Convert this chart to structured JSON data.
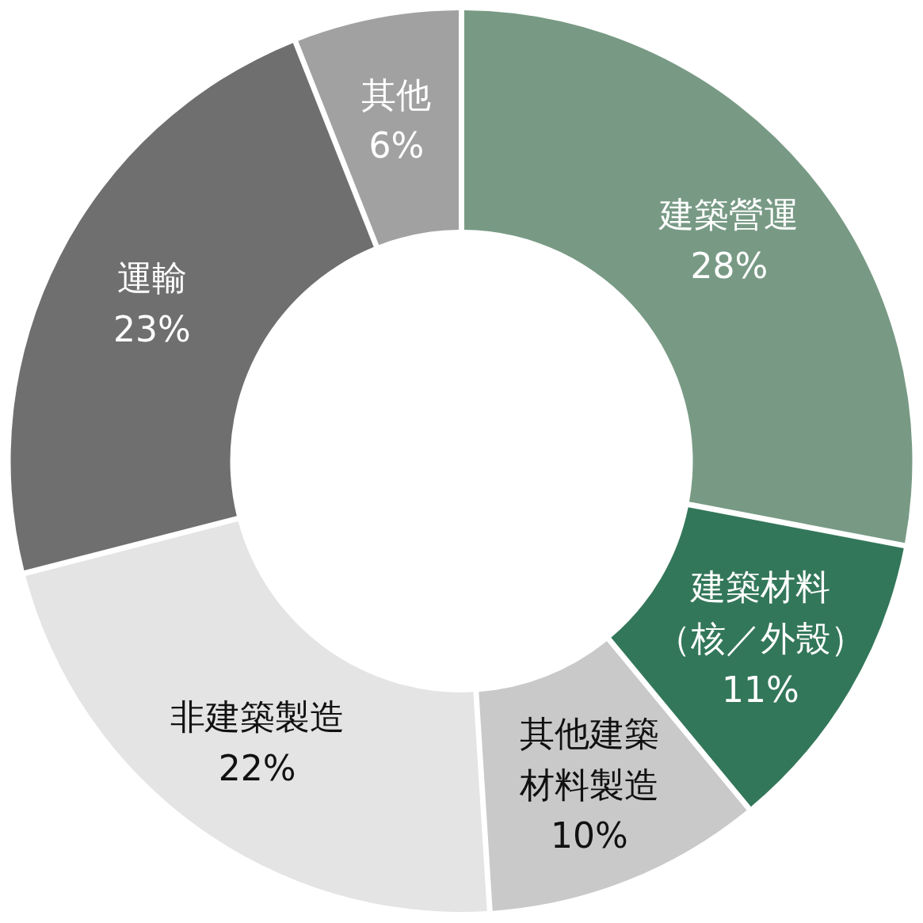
{
  "chart_data": {
    "type": "donut",
    "categories": [
      "建築營運",
      "建築材料（核／外殼）",
      "其他建築材料製造",
      "非建築製造",
      "運輸",
      "其他"
    ],
    "values": [
      28,
      11,
      10,
      22,
      23,
      6
    ],
    "value_labels": [
      "28%",
      "11%",
      "10%",
      "22%",
      "23%",
      "6%"
    ],
    "colors": [
      "#789a85",
      "#33775a",
      "#c8c9c8",
      "#e4e4e4",
      "#6f6f6f",
      "#a0a1a0"
    ]
  }
}
